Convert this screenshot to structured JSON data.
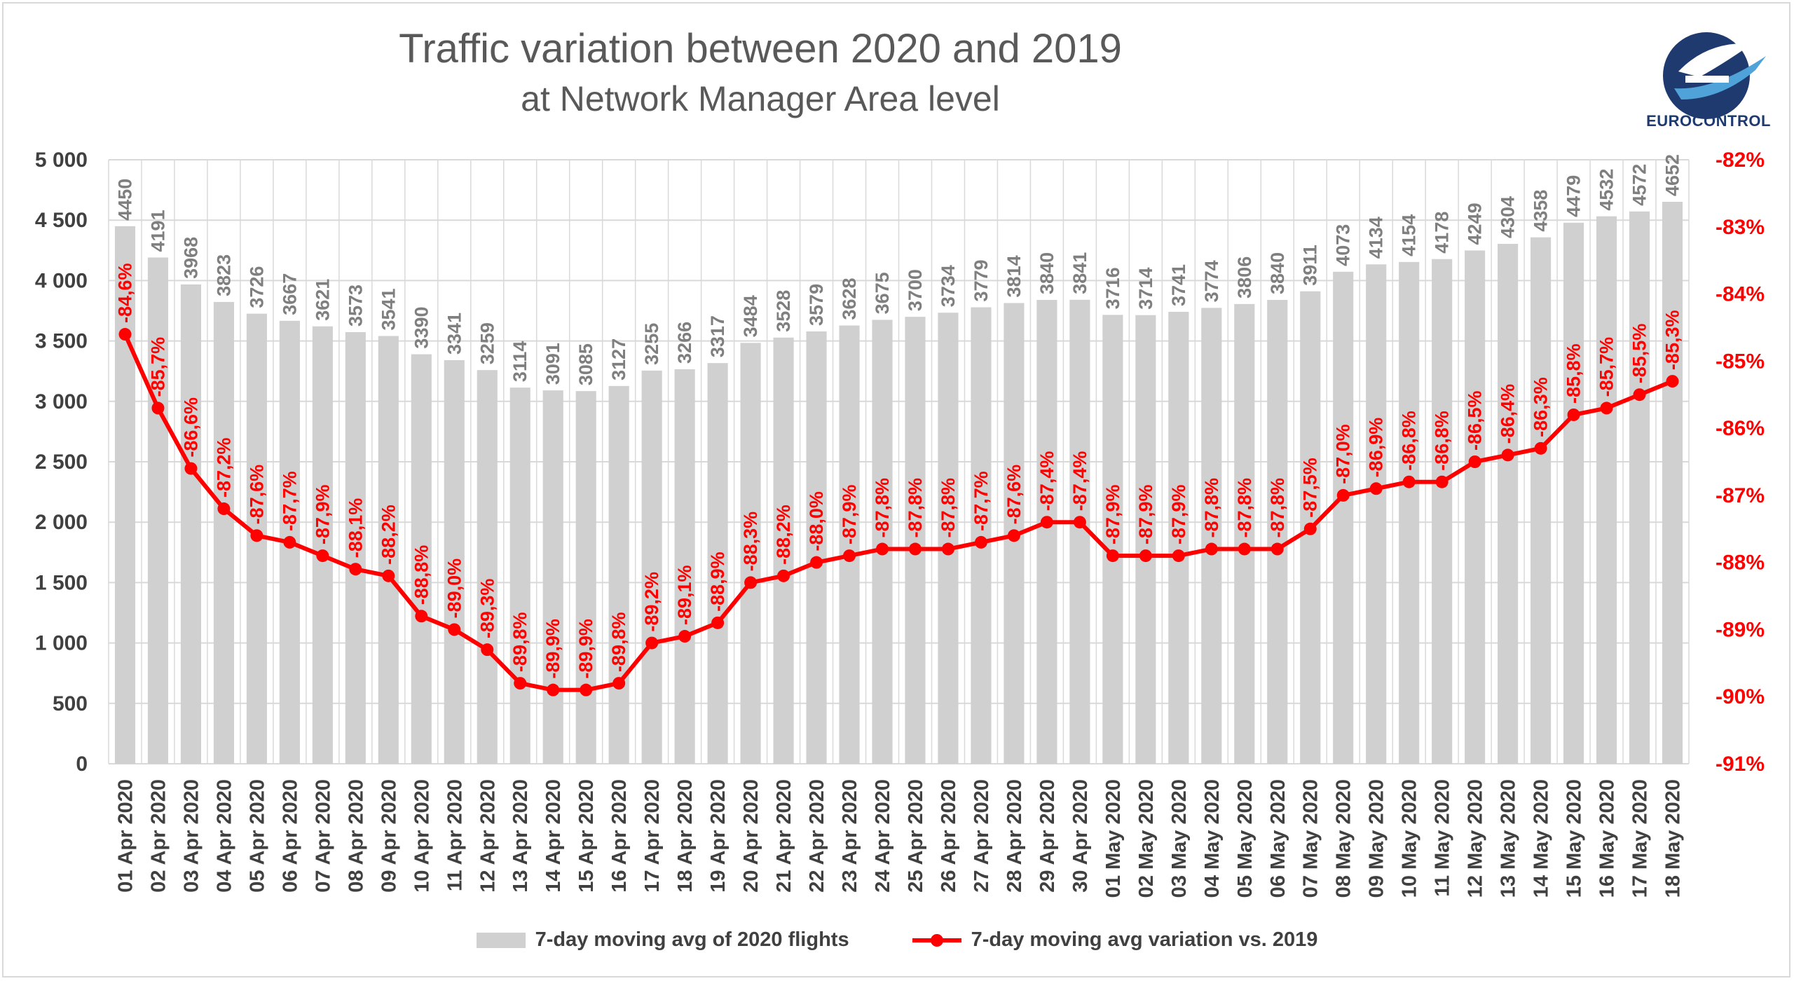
{
  "title": "Traffic variation between 2020 and 2019",
  "subtitle": "at Network Manager Area level",
  "logo": {
    "icon": "eurocontrol-logo",
    "text": "EUROCONTROL"
  },
  "colors": {
    "bar": "#d0d0d0",
    "line": "#ff0000",
    "grid": "#d9d9d9",
    "axis_text": "#404040",
    "bar_label": "#7f7f7f"
  },
  "chart_data": {
    "type": "bar+line",
    "categories": [
      "01 Apr 2020",
      "02 Apr 2020",
      "03 Apr 2020",
      "04 Apr 2020",
      "05 Apr 2020",
      "06 Apr 2020",
      "07 Apr 2020",
      "08 Apr 2020",
      "09 Apr 2020",
      "10 Apr 2020",
      "11 Apr 2020",
      "12 Apr 2020",
      "13 Apr 2020",
      "14 Apr 2020",
      "15 Apr 2020",
      "16 Apr 2020",
      "17 Apr 2020",
      "18 Apr 2020",
      "19 Apr 2020",
      "20 Apr 2020",
      "21 Apr 2020",
      "22 Apr 2020",
      "23 Apr 2020",
      "24 Apr 2020",
      "25 Apr 2020",
      "26 Apr 2020",
      "27 Apr 2020",
      "28 Apr 2020",
      "29 Apr 2020",
      "30 Apr 2020",
      "01 May 2020",
      "02 May 2020",
      "03 May 2020",
      "04 May 2020",
      "05 May 2020",
      "06 May 2020",
      "07 May 2020",
      "08 May 2020",
      "09 May 2020",
      "10 May 2020",
      "11 May 2020",
      "12 May 2020",
      "13 May 2020",
      "14 May 2020",
      "15 May 2020",
      "16 May 2020",
      "17 May 2020",
      "18 May 2020"
    ],
    "series": [
      {
        "name": "7-day moving avg of 2020 flights",
        "type": "bar",
        "axis": "left",
        "values": [
          4450,
          4191,
          3968,
          3823,
          3726,
          3667,
          3621,
          3573,
          3541,
          3390,
          3341,
          3259,
          3114,
          3091,
          3085,
          3127,
          3255,
          3266,
          3317,
          3484,
          3528,
          3579,
          3628,
          3675,
          3700,
          3734,
          3779,
          3814,
          3840,
          3841,
          3716,
          3714,
          3741,
          3774,
          3806,
          3840,
          3911,
          4073,
          4134,
          4154,
          4178,
          4249,
          4304,
          4358,
          4479,
          4532,
          4572,
          4652
        ]
      },
      {
        "name": "7-day moving avg variation vs. 2019",
        "type": "line",
        "axis": "right",
        "values": [
          -84.6,
          -85.7,
          -86.6,
          -87.2,
          -87.6,
          -87.7,
          -87.9,
          -88.1,
          -88.2,
          -88.8,
          -89.0,
          -89.3,
          -89.8,
          -89.9,
          -89.9,
          -89.8,
          -89.2,
          -89.1,
          -88.9,
          -88.3,
          -88.2,
          -88.0,
          -87.9,
          -87.8,
          -87.8,
          -87.8,
          -87.7,
          -87.6,
          -87.4,
          -87.4,
          -87.9,
          -87.9,
          -87.9,
          -87.8,
          -87.8,
          -87.8,
          -87.5,
          -87.0,
          -86.9,
          -86.8,
          -86.8,
          -86.5,
          -86.4,
          -86.3,
          -85.8,
          -85.7,
          -85.5,
          -85.3
        ],
        "labels": [
          "-84,6%",
          "-85,7%",
          "-86,6%",
          "-87,2%",
          "-87,6%",
          "-87,7%",
          "-87,9%",
          "-88,1%",
          "-88,2%",
          "-88,8%",
          "-89,0%",
          "-89,3%",
          "-89,8%",
          "-89,9%",
          "-89,9%",
          "-89,8%",
          "-89,2%",
          "-89,1%",
          "-88,9%",
          "-88,3%",
          "-88,2%",
          "-88,0%",
          "-87,9%",
          "-87,8%",
          "-87,8%",
          "-87,8%",
          "-87,7%",
          "-87,6%",
          "-87,4%",
          "-87,4%",
          "-87,9%",
          "-87,9%",
          "-87,9%",
          "-87,8%",
          "-87,8%",
          "-87,8%",
          "-87,5%",
          "-87,0%",
          "-86,9%",
          "-86,8%",
          "-86,8%",
          "-86,5%",
          "-86,4%",
          "-86,3%",
          "-85,8%",
          "-85,7%",
          "-85,5%",
          "-85,3%"
        ]
      }
    ],
    "y_left": {
      "min": 0,
      "max": 5000,
      "ticks": [
        "0",
        "500",
        "1 000",
        "1 500",
        "2 000",
        "2 500",
        "3 000",
        "3 500",
        "4 000",
        "4 500",
        "5 000"
      ]
    },
    "y_right": {
      "min": -91,
      "max": -82,
      "ticks": [
        "-91%",
        "-90%",
        "-89%",
        "-88%",
        "-87%",
        "-86%",
        "-85%",
        "-84%",
        "-83%",
        "-82%"
      ]
    },
    "grid": true,
    "legend_position": "bottom"
  }
}
